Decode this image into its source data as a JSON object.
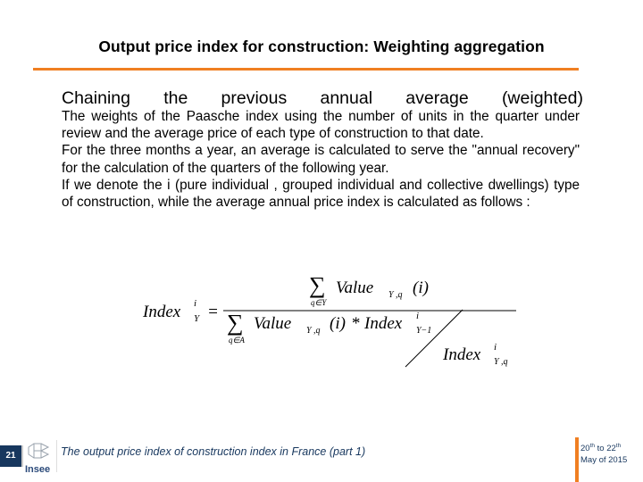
{
  "header": {
    "title": "Output price index for construction: Weighting aggregation"
  },
  "content": {
    "subtitle_words": [
      "Chaining",
      "the",
      "previous",
      "annual",
      "average",
      "(weighted)"
    ],
    "paragraphs": [
      "The weights of the Paasche index using the number of units in the quarter under review and the average price of each type of construction to that date.",
      "For the three months a year, an average is calculated to serve the \"annual recovery\" for the calculation of the quarters of the following year.",
      "If we denote the i (pure individual , grouped individual and collective dwellings) type of construction, while the average annual price index is calculated as follows :"
    ]
  },
  "formula": {
    "lhs": "Index",
    "lhs_sup": "i",
    "lhs_sub": "Y",
    "num_sum_sub": "q∈Y",
    "num_term": "Value",
    "num_sub": "Y ,q",
    "num_arg": "(i)",
    "den_sum_sub": "q∈A",
    "den_term": "Value",
    "den_sub": "Y ,q",
    "den_arg": "(i)",
    "den_op": "*",
    "den_index": "Index",
    "den_index_sup": "i",
    "den_index_sub": "Y−1",
    "den2_index": "Index",
    "den2_sup": "i",
    "den2_sub": "Y ,q"
  },
  "footer": {
    "slide_number": "21",
    "logo_text": "Insee",
    "text": "The output price index of construction index in France (part 1)",
    "date_line1_a": "20",
    "date_line1_a_sup": "th",
    "date_line1_b": " to 22",
    "date_line1_b_sup": "th",
    "date_line2": "May  of 2015"
  },
  "colors": {
    "accent": "#f07f22",
    "footer_blue": "#17375e"
  }
}
